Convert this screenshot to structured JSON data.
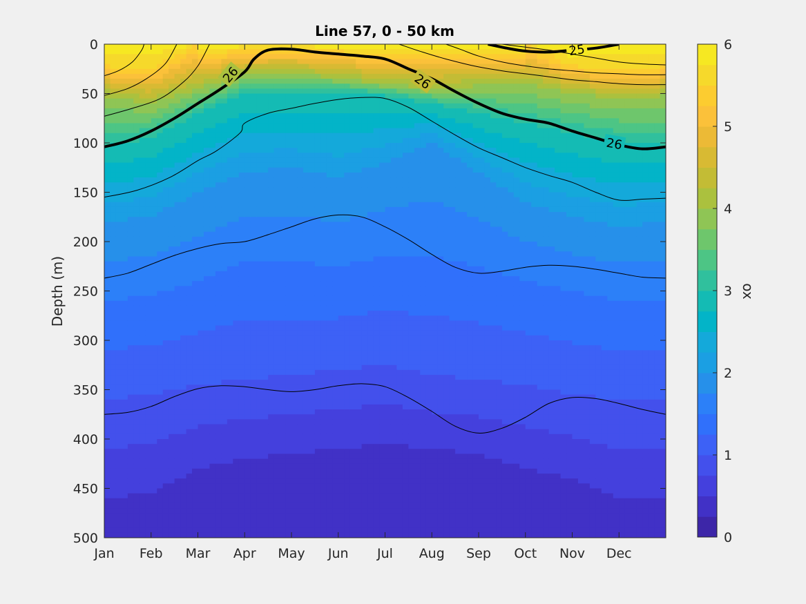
{
  "chart_data": {
    "type": "heatmap",
    "title": "Line 57, 0 - 50 km",
    "xlabel": "",
    "ylabel": "Depth (m)",
    "x_tick_labels": [
      "Jan",
      "Feb",
      "Mar",
      "Apr",
      "May",
      "Jun",
      "Jul",
      "Aug",
      "Sep",
      "Oct",
      "Nov",
      "Dec"
    ],
    "y_ticks": [
      0,
      50,
      100,
      150,
      200,
      250,
      300,
      350,
      400,
      450,
      500
    ],
    "ylim": [
      0,
      500
    ],
    "y_reversed": true,
    "colorbar": {
      "label": "ox",
      "range": [
        0,
        6
      ],
      "step": 0.25,
      "ticks": [
        0,
        1,
        2,
        3,
        4,
        5,
        6
      ],
      "colors": [
        "#3d26a8",
        "#4131c6",
        "#4440dd",
        "#4350ec",
        "#3d61f6",
        "#3070fb",
        "#2c80f8",
        "#2690ea",
        "#1b9fe3",
        "#14a9da",
        "#03b4c8",
        "#14bbb4",
        "#30c09d",
        "#4dc585",
        "#6ec66c",
        "#8fc555",
        "#abc13e",
        "#c3bc35",
        "#d8ba33",
        "#ecba36",
        "#fbc13a",
        "#fccc30",
        "#f6d92b",
        "#f6e822"
      ]
    },
    "field_columns": {
      "months": [
        0,
        1,
        2,
        3,
        4,
        5,
        6,
        7,
        8,
        9,
        10,
        11,
        12
      ],
      "depth_5.5_at_0_to_22m": [
        22,
        25,
        0,
        0,
        0,
        0,
        0,
        0,
        0,
        0,
        22,
        25,
        22
      ],
      "depth_4_level": [
        52,
        60,
        45,
        30,
        28,
        35,
        40,
        45,
        42,
        40,
        50,
        55,
        52
      ],
      "depth_3_level": [
        103,
        95,
        70,
        50,
        50,
        48,
        52,
        60,
        70,
        80,
        90,
        100,
        103
      ],
      "depth_2_level": [
        180,
        175,
        150,
        130,
        125,
        135,
        120,
        100,
        130,
        160,
        175,
        185,
        180
      ],
      "depth_1.5_level": [
        260,
        255,
        240,
        220,
        220,
        225,
        215,
        215,
        225,
        240,
        250,
        260,
        260
      ],
      "depth_1_level": [
        360,
        355,
        345,
        340,
        335,
        330,
        325,
        335,
        340,
        345,
        355,
        360,
        360
      ],
      "depth_0.5_level": [
        460,
        455,
        430,
        420,
        415,
        410,
        405,
        410,
        415,
        430,
        440,
        460,
        460
      ]
    },
    "contours": [
      {
        "level": "26",
        "bold": true,
        "x": [
          0,
          0.5,
          1,
          1.5,
          2,
          2.5,
          3,
          3.2,
          3.5,
          4,
          4.5,
          5,
          5.5,
          6,
          6.5,
          7,
          7.5,
          8,
          8.5,
          9,
          9.5,
          10,
          10.5,
          11,
          11.5,
          12
        ],
        "y": [
          104,
          98,
          88,
          75,
          60,
          45,
          28,
          15,
          6,
          5,
          8,
          10,
          12,
          15,
          25,
          35,
          48,
          60,
          70,
          76,
          80,
          88,
          95,
          102,
          106,
          104
        ],
        "labels": [
          {
            "text": "26",
            "x": 2.7,
            "y": 31,
            "angle": -50
          },
          {
            "text": "26",
            "x": 6.8,
            "y": 38,
            "angle": 35
          },
          {
            "text": "26",
            "x": 10.9,
            "y": 101,
            "angle": 10
          }
        ]
      },
      {
        "level": "25",
        "bold": true,
        "x": [
          8.2,
          8.6,
          9,
          9.5,
          10,
          10.5,
          11.0
        ],
        "y": [
          0,
          4,
          7,
          8,
          6,
          4,
          0
        ],
        "labels": [
          {
            "text": "25",
            "x": 10.1,
            "y": 6,
            "angle": -8
          }
        ]
      },
      {
        "level": "",
        "bold": false,
        "x": [
          0,
          0.3,
          0.6,
          0.8,
          0.85
        ],
        "y": [
          32,
          27,
          18,
          6,
          0
        ],
        "labels": []
      },
      {
        "level": "",
        "bold": false,
        "x": [
          0,
          0.5,
          0.9,
          1.3,
          1.55
        ],
        "y": [
          52,
          45,
          35,
          20,
          0
        ],
        "labels": []
      },
      {
        "level": "",
        "bold": false,
        "x": [
          0,
          0.6,
          1.2,
          1.7,
          2.0,
          2.25
        ],
        "y": [
          73,
          65,
          55,
          38,
          22,
          0
        ],
        "labels": []
      },
      {
        "level": "",
        "bold": false,
        "x": [
          6.3,
          6.8,
          7.3,
          7.9,
          8.5,
          9.0,
          9.5,
          10,
          10.5,
          11,
          11.5,
          12
        ],
        "y": [
          0,
          8,
          15,
          22,
          27,
          30,
          33,
          36,
          38,
          40,
          41,
          41
        ],
        "labels": []
      },
      {
        "level": "",
        "bold": false,
        "x": [
          7.3,
          7.6,
          8,
          8.5,
          9,
          9.5,
          10,
          10.5,
          11,
          11.5,
          12
        ],
        "y": [
          0,
          5,
          12,
          18,
          22,
          25,
          27,
          29,
          30,
          31,
          31
        ],
        "labels": []
      },
      {
        "level": "",
        "bold": false,
        "x": [
          8.5,
          9,
          9.5,
          10,
          10.5,
          11,
          11.5,
          12
        ],
        "y": [
          0,
          3,
          6,
          10,
          14,
          18,
          20,
          21
        ],
        "labels": []
      },
      {
        "level": "",
        "bold": false,
        "x": [
          0,
          0.7,
          1.4,
          2,
          2.4,
          2.9,
          3,
          3.5,
          4,
          4.5,
          5,
          5.5,
          6,
          6.5,
          7,
          7.5,
          8,
          8.5,
          9,
          9.5,
          10,
          10.5,
          11,
          11.5,
          12
        ],
        "y": [
          155,
          148,
          135,
          118,
          108,
          90,
          80,
          70,
          65,
          60,
          56,
          54,
          55,
          64,
          78,
          92,
          105,
          115,
          125,
          133,
          140,
          150,
          158,
          157,
          156
        ],
        "labels": []
      },
      {
        "level": "",
        "bold": false,
        "x": [
          0,
          0.5,
          1,
          1.5,
          2,
          2.5,
          3,
          3.5,
          4,
          4.5,
          5,
          5.5,
          6,
          6.5,
          7,
          7.5,
          8,
          8.5,
          9,
          9.5,
          10,
          10.5,
          11,
          11.5,
          12
        ],
        "y": [
          237,
          232,
          223,
          214,
          207,
          202,
          200,
          193,
          185,
          177,
          173,
          175,
          185,
          198,
          213,
          226,
          232,
          230,
          226,
          224,
          225,
          228,
          232,
          236,
          237
        ],
        "labels": []
      },
      {
        "level": "",
        "bold": false,
        "x": [
          0,
          0.5,
          1,
          1.5,
          2,
          2.5,
          3,
          3.5,
          4,
          4.5,
          5,
          5.5,
          6,
          6.5,
          7,
          7.5,
          8,
          8.5,
          9,
          9.5,
          10,
          10.5,
          11,
          11.5,
          12
        ],
        "y": [
          375,
          373,
          367,
          357,
          349,
          346,
          347,
          350,
          352,
          350,
          346,
          344,
          347,
          358,
          372,
          387,
          394,
          389,
          378,
          364,
          358,
          359,
          364,
          370,
          375
        ],
        "labels": []
      }
    ]
  }
}
